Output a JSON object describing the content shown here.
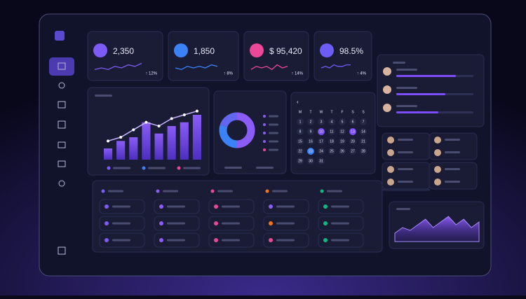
{
  "stats": [
    {
      "value": "2,350",
      "change": "↑ 12%",
      "color": "#7c5cf5",
      "trend": [
        4,
        5,
        4,
        6,
        5,
        7,
        6,
        8
      ]
    },
    {
      "value": "1,850",
      "change": "↑ 8%",
      "color": "#3b82f6",
      "trend": [
        5,
        4,
        6,
        5,
        6,
        5,
        7,
        6
      ]
    },
    {
      "value": "$ 95,420",
      "change": "↑ 14%",
      "color": "#ec4899",
      "trend": [
        4,
        6,
        5,
        6,
        4,
        7,
        5,
        6
      ]
    },
    {
      "value": "98.5%",
      "change": "↑ 4%",
      "color": "#6d5cf5",
      "trend": [
        5,
        6,
        5,
        7,
        6,
        6,
        7,
        7
      ]
    }
  ],
  "bar_chart": {
    "type": "bar",
    "categories": [
      null,
      null,
      null,
      null,
      null,
      null,
      null,
      null
    ],
    "values": [
      3,
      5,
      6,
      10,
      7,
      9,
      10,
      12
    ],
    "line": [
      5,
      6,
      8,
      10,
      9,
      11,
      12,
      13
    ],
    "ylim": [
      0,
      15
    ],
    "color": "#7c4dff"
  },
  "donut": {
    "type": "pie",
    "values": [
      50,
      30,
      20
    ],
    "colors": [
      "#8b5cf6",
      "#3b82f6",
      "#6366f1"
    ]
  },
  "calendar": {
    "weekdays": [
      "M",
      "T",
      "W",
      "T",
      "F",
      "S",
      "S"
    ],
    "days": [
      1,
      2,
      3,
      4,
      5,
      6,
      7,
      8,
      9,
      10,
      11,
      12,
      13,
      14,
      15,
      16,
      17,
      18,
      19,
      20,
      21,
      22,
      23,
      24,
      25,
      26,
      27,
      28,
      29,
      30,
      31
    ],
    "highlighted": [
      10,
      13,
      23
    ]
  },
  "area_chart": {
    "type": "area",
    "values": [
      3,
      5,
      4,
      6,
      8,
      5,
      7,
      9,
      6,
      8,
      5,
      7
    ],
    "ylim": [
      0,
      10
    ]
  }
}
